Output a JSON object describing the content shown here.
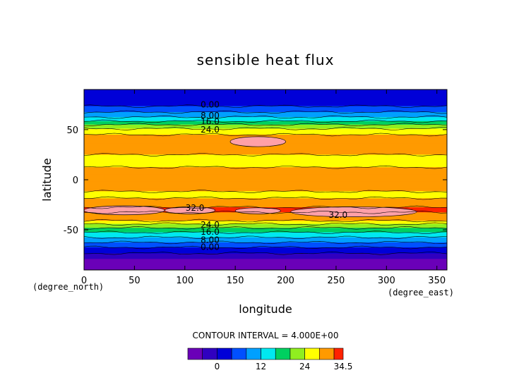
{
  "chart_data": {
    "type": "heatmap",
    "title": "sensible heat flux",
    "xlabel": "longitude",
    "ylabel": "latitude",
    "x_unit": "(degree_east)",
    "y_unit": "(degree_north)",
    "xlim": [
      0,
      360
    ],
    "ylim": [
      -90,
      90
    ],
    "x_ticks": [
      0,
      50,
      100,
      150,
      200,
      250,
      300,
      350
    ],
    "y_ticks": [
      -50,
      0,
      50
    ],
    "contour_interval_text": "CONTOUR INTERVAL = 4.000E+00",
    "colorbar": {
      "tick_labels": [
        "0",
        "12",
        "24",
        "34.5"
      ],
      "tick_values": [
        0,
        12,
        24,
        34.5
      ],
      "levels": [
        -8,
        -4,
        0,
        4,
        8,
        12,
        16,
        20,
        24,
        28,
        32,
        34.5
      ],
      "colors": [
        "#6a00b8",
        "#3000c0",
        "#0000d8",
        "#0050ff",
        "#00a0ff",
        "#00e8f0",
        "#00d060",
        "#90ee20",
        "#ffff00",
        "#ff9a00",
        "#ff2200",
        "#ffa0a8"
      ]
    },
    "zonal_profile": {
      "lat": [
        -90,
        -80,
        -75,
        -70,
        -65,
        -60,
        -55,
        -50,
        -45,
        -40,
        -35,
        -30,
        -25,
        -20,
        -15,
        -10,
        0,
        10,
        15,
        20,
        25,
        30,
        35,
        40,
        45,
        50,
        55,
        60,
        65,
        70,
        75,
        80,
        90
      ],
      "values": [
        -6,
        -5,
        -1,
        2,
        6,
        10,
        14,
        18,
        23,
        29,
        31,
        33,
        31,
        29,
        26,
        29,
        30,
        29,
        27,
        26,
        28,
        30,
        31,
        30,
        28,
        25,
        20,
        14,
        10,
        6,
        3,
        1,
        0
      ]
    },
    "contour_labels": [
      {
        "text": "0.00",
        "lon": 125,
        "lat": 75
      },
      {
        "text": "8.00",
        "lon": 125,
        "lat": 64
      },
      {
        "text": "16.0",
        "lon": 125,
        "lat": 58
      },
      {
        "text": "24.0",
        "lon": 125,
        "lat": 50
      },
      {
        "text": "32.0",
        "lon": 110,
        "lat": -28
      },
      {
        "text": "32.0",
        "lon": 252,
        "lat": -35
      },
      {
        "text": "24.0",
        "lon": 125,
        "lat": -45
      },
      {
        "text": "16.0",
        "lon": 125,
        "lat": -52
      },
      {
        "text": "8.00",
        "lon": 125,
        "lat": -60
      },
      {
        "text": "0.00",
        "lon": 125,
        "lat": -67
      }
    ],
    "maxima_patches": [
      {
        "lon": [
          145,
          200
        ],
        "lat": [
          33,
          43
        ]
      },
      {
        "lon": [
          0,
          80
        ],
        "lat": [
          -35,
          -26
        ]
      },
      {
        "lon": [
          80,
          130
        ],
        "lat": [
          -34,
          -27
        ]
      },
      {
        "lon": [
          150,
          195
        ],
        "lat": [
          -34,
          -28
        ]
      },
      {
        "lon": [
          205,
          330
        ],
        "lat": [
          -37,
          -27
        ]
      }
    ]
  }
}
